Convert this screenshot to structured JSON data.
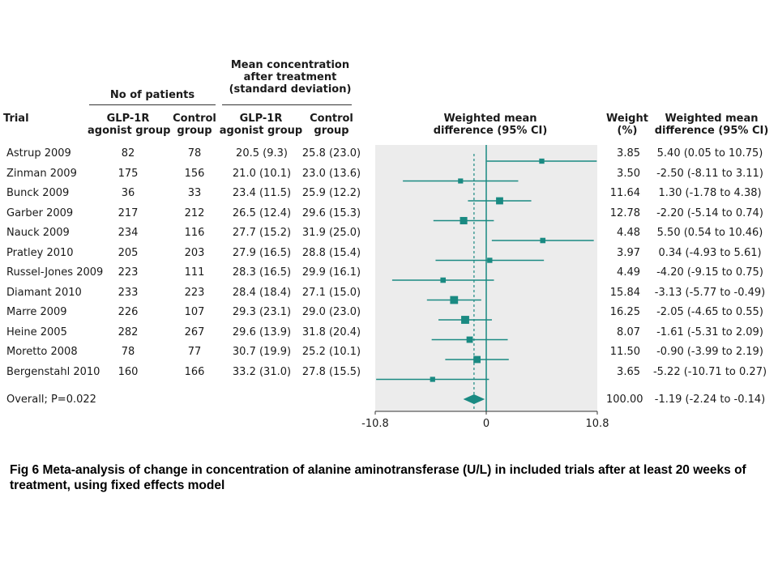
{
  "figure": {
    "headers": {
      "trial": "Trial",
      "no_of_patients": "No of patients",
      "mean_concentration": [
        "Mean concentration",
        "after treatment",
        "(standard deviation)"
      ],
      "glp1r_patients": [
        "GLP-1R",
        "agonist group"
      ],
      "control_patients": [
        "Control",
        "group"
      ],
      "glp1r_mean": [
        "GLP-1R",
        "agonist group"
      ],
      "control_mean": [
        "Control",
        "group"
      ],
      "wmd_plot": [
        "Weighted mean",
        "difference (95% CI)"
      ],
      "weight": [
        "Weight",
        "(%)"
      ],
      "wmd_text": [
        "Weighted mean",
        "difference (95% CI)"
      ]
    },
    "overall": {
      "label": "Overall; P=0.022",
      "weight": "100.00",
      "wmd": "-1.19 (-2.24 to -0.14)"
    }
  },
  "chart_data": {
    "type": "forest",
    "title": "",
    "x_ticks": [
      "-10.8",
      "0",
      "10.8"
    ],
    "xlim": [
      -10.8,
      10.8
    ],
    "accent_color": "#1a8a82",
    "shade_color": "#ececec",
    "studies": [
      {
        "trial": "Astrup 2009",
        "glp1r_n": "82",
        "control_n": "78",
        "glp1r_mean": "20.5 (9.3)",
        "control_mean": "25.8 (23.0)",
        "weight": "3.85",
        "wmd": "5.40 (0.05 to 10.75)",
        "est": 5.4,
        "lo": 0.05,
        "hi": 10.75,
        "w": 3.85
      },
      {
        "trial": "Zinman 2009",
        "glp1r_n": "175",
        "control_n": "156",
        "glp1r_mean": "21.0 (10.1)",
        "control_mean": "23.0 (13.6)",
        "weight": "3.50",
        "wmd": "-2.50 (-8.11 to 3.11)",
        "est": -2.5,
        "lo": -8.11,
        "hi": 3.11,
        "w": 3.5
      },
      {
        "trial": "Bunck 2009",
        "glp1r_n": "36",
        "control_n": "33",
        "glp1r_mean": "23.4 (11.5)",
        "control_mean": "25.9 (12.2)",
        "weight": "11.64",
        "wmd": "1.30 (-1.78 to 4.38)",
        "est": 1.3,
        "lo": -1.78,
        "hi": 4.38,
        "w": 11.64
      },
      {
        "trial": "Garber 2009",
        "glp1r_n": "217",
        "control_n": "212",
        "glp1r_mean": "26.5 (12.4)",
        "control_mean": "29.6 (15.3)",
        "weight": "12.78",
        "wmd": "-2.20 (-5.14 to 0.74)",
        "est": -2.2,
        "lo": -5.14,
        "hi": 0.74,
        "w": 12.78
      },
      {
        "trial": "Nauck 2009",
        "glp1r_n": "234",
        "control_n": "116",
        "glp1r_mean": "27.7 (15.2)",
        "control_mean": "31.9 (25.0)",
        "weight": "4.48",
        "wmd": "5.50 (0.54 to 10.46)",
        "est": 5.5,
        "lo": 0.54,
        "hi": 10.46,
        "w": 4.48
      },
      {
        "trial": "Pratley 2010",
        "glp1r_n": "205",
        "control_n": "203",
        "glp1r_mean": "27.9 (16.5)",
        "control_mean": "28.8 (15.4)",
        "weight": "3.97",
        "wmd": "0.34 (-4.93 to 5.61)",
        "est": 0.34,
        "lo": -4.93,
        "hi": 5.61,
        "w": 3.97
      },
      {
        "trial": "Russel-Jones 2009",
        "glp1r_n": "223",
        "control_n": "111",
        "glp1r_mean": "28.3 (16.5)",
        "control_mean": "29.9 (16.1)",
        "weight": "4.49",
        "wmd": "-4.20 (-9.15 to 0.75)",
        "est": -4.2,
        "lo": -9.15,
        "hi": 0.75,
        "w": 4.49
      },
      {
        "trial": "Diamant 2010",
        "glp1r_n": "233",
        "control_n": "223",
        "glp1r_mean": "28.4 (18.4)",
        "control_mean": "27.1 (15.0)",
        "weight": "15.84",
        "wmd": "-3.13 (-5.77 to -0.49)",
        "est": -3.13,
        "lo": -5.77,
        "hi": -0.49,
        "w": 15.84
      },
      {
        "trial": "Marre 2009",
        "glp1r_n": "226",
        "control_n": "107",
        "glp1r_mean": "29.3 (23.1)",
        "control_mean": "29.0 (23.0)",
        "weight": "16.25",
        "wmd": "-2.05 (-4.65 to 0.55)",
        "est": -2.05,
        "lo": -4.65,
        "hi": 0.55,
        "w": 16.25
      },
      {
        "trial": "Heine 2005",
        "glp1r_n": "282",
        "control_n": "267",
        "glp1r_mean": "29.6 (13.9)",
        "control_mean": "31.8 (20.4)",
        "weight": "8.07",
        "wmd": "-1.61 (-5.31 to 2.09)",
        "est": -1.61,
        "lo": -5.31,
        "hi": 2.09,
        "w": 8.07
      },
      {
        "trial": "Moretto 2008",
        "glp1r_n": "78",
        "control_n": "77",
        "glp1r_mean": "30.7 (19.9)",
        "control_mean": "25.2 (10.1)",
        "weight": "11.50",
        "wmd": "-0.90 (-3.99 to 2.19)",
        "est": -0.9,
        "lo": -3.99,
        "hi": 2.19,
        "w": 11.5
      },
      {
        "trial": "Bergenstahl 2010",
        "glp1r_n": "160",
        "control_n": "166",
        "glp1r_mean": "33.2 (31.0)",
        "control_mean": "27.8 (15.5)",
        "weight": "3.65",
        "wmd": "-5.22 (-10.71 to 0.27)",
        "est": -5.22,
        "lo": -10.71,
        "hi": 0.27,
        "w": 3.65
      }
    ],
    "overall": {
      "est": -1.19,
      "lo": -2.24,
      "hi": -0.14,
      "label": "Overall; P=0.022",
      "weight": "100.00",
      "wmd": "-1.19 (-2.24 to -0.14)"
    }
  },
  "caption": "Fig 6 Meta-analysis of change in concentration of alanine aminotransferase (U/L) in included trials after at least 20 weeks of treatment, using fixed effects model"
}
